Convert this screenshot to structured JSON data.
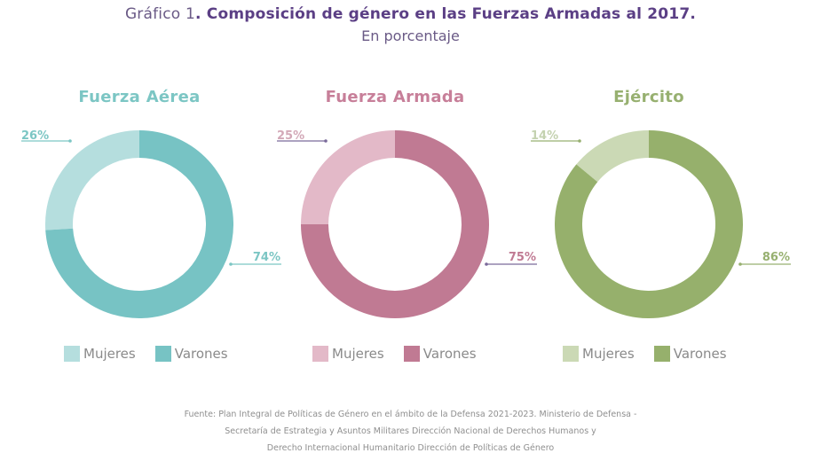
{
  "title": {
    "prefix": "Gráfico 1",
    "main": ". Composición de género en las Fuerzas Armadas al 2017.",
    "subtitle": "En porcentaje"
  },
  "chart_data": [
    {
      "type": "pie",
      "title": "Fuerza Aérea",
      "categories": [
        "Mujeres",
        "Varones"
      ],
      "values": [
        26,
        74
      ],
      "labels": [
        "26%",
        "74%"
      ],
      "colors": [
        "#b5dede",
        "#77c3c4"
      ],
      "title_color": "#7cc6c4",
      "label_colors": [
        "#7cc6c4",
        "#7cc6c4"
      ],
      "legend": "bottom"
    },
    {
      "type": "pie",
      "title": "Fuerza Armada",
      "categories": [
        "Mujeres",
        "Varones"
      ],
      "values": [
        25,
        75
      ],
      "labels": [
        "25%",
        "75%"
      ],
      "colors": [
        "#e3b9c8",
        "#c07a93"
      ],
      "title_color": "#c77f99",
      "label_colors": [
        "#d3a9b8",
        "#c07a93"
      ],
      "line_color": "#7a6a9a",
      "legend": "bottom"
    },
    {
      "type": "pie",
      "title": "Ejército",
      "categories": [
        "Mujeres",
        "Varones"
      ],
      "values": [
        14,
        86
      ],
      "labels": [
        "14%",
        "86%"
      ],
      "colors": [
        "#cbd9b5",
        "#96b06c"
      ],
      "title_color": "#97b070",
      "label_colors": [
        "#c4d2b0",
        "#97b070"
      ],
      "legend": "bottom"
    }
  ],
  "source": {
    "line1": "Fuente: Plan Integral de Políticas de Género en el ámbito de la Defensa 2021-2023. Ministerio de Defensa -",
    "line2": "Secretaría de Estrategia y Asuntos Militares Dirección Nacional de Derechos Humanos y",
    "line3": "Derecho Internacional Humanitario Dirección de Políticas de Género"
  }
}
